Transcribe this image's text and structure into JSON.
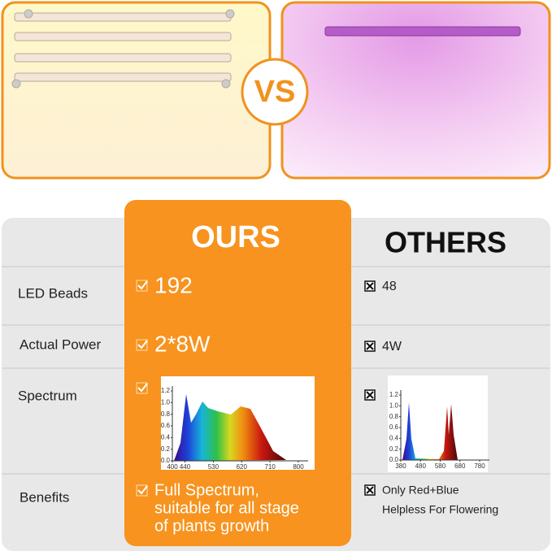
{
  "vs": "VS",
  "table": {
    "headers": [
      "OURS",
      "OTHERS"
    ],
    "rows": [
      {
        "label": "LED Beads",
        "ours": "192",
        "others": "48"
      },
      {
        "label": "Actual Power",
        "ours": "2*8W",
        "others": "4W"
      },
      {
        "label": "Spectrum"
      },
      {
        "label": "Benefits",
        "ours": [
          "Full Spectrum,",
          "suitable for all stage",
          "of plants growth"
        ],
        "others": [
          "Only Red+Blue",
          "Helpless For Flowering"
        ]
      }
    ]
  },
  "spectrum_ours": {
    "xlim": [
      400,
      800
    ],
    "ylim": [
      0,
      1.2
    ],
    "xticks": [
      400,
      440,
      530,
      620,
      710,
      800
    ],
    "yticks": [
      {
        "value": 0,
        "label": "0.0"
      },
      0.2,
      0.4,
      0.6,
      0.8,
      {
        "value": 1,
        "label": "1.0"
      },
      1.2
    ]
  },
  "spectrum_others": {
    "xlim": [
      380,
      780
    ],
    "ylim": [
      0,
      1.2
    ],
    "xticks": [
      380,
      480,
      580,
      680,
      780
    ],
    "yticks": [
      {
        "value": 0,
        "label": "0.0"
      },
      0.2,
      0.4,
      0.6,
      0.8,
      {
        "value": 1,
        "label": "1.0"
      },
      1.2
    ]
  }
}
